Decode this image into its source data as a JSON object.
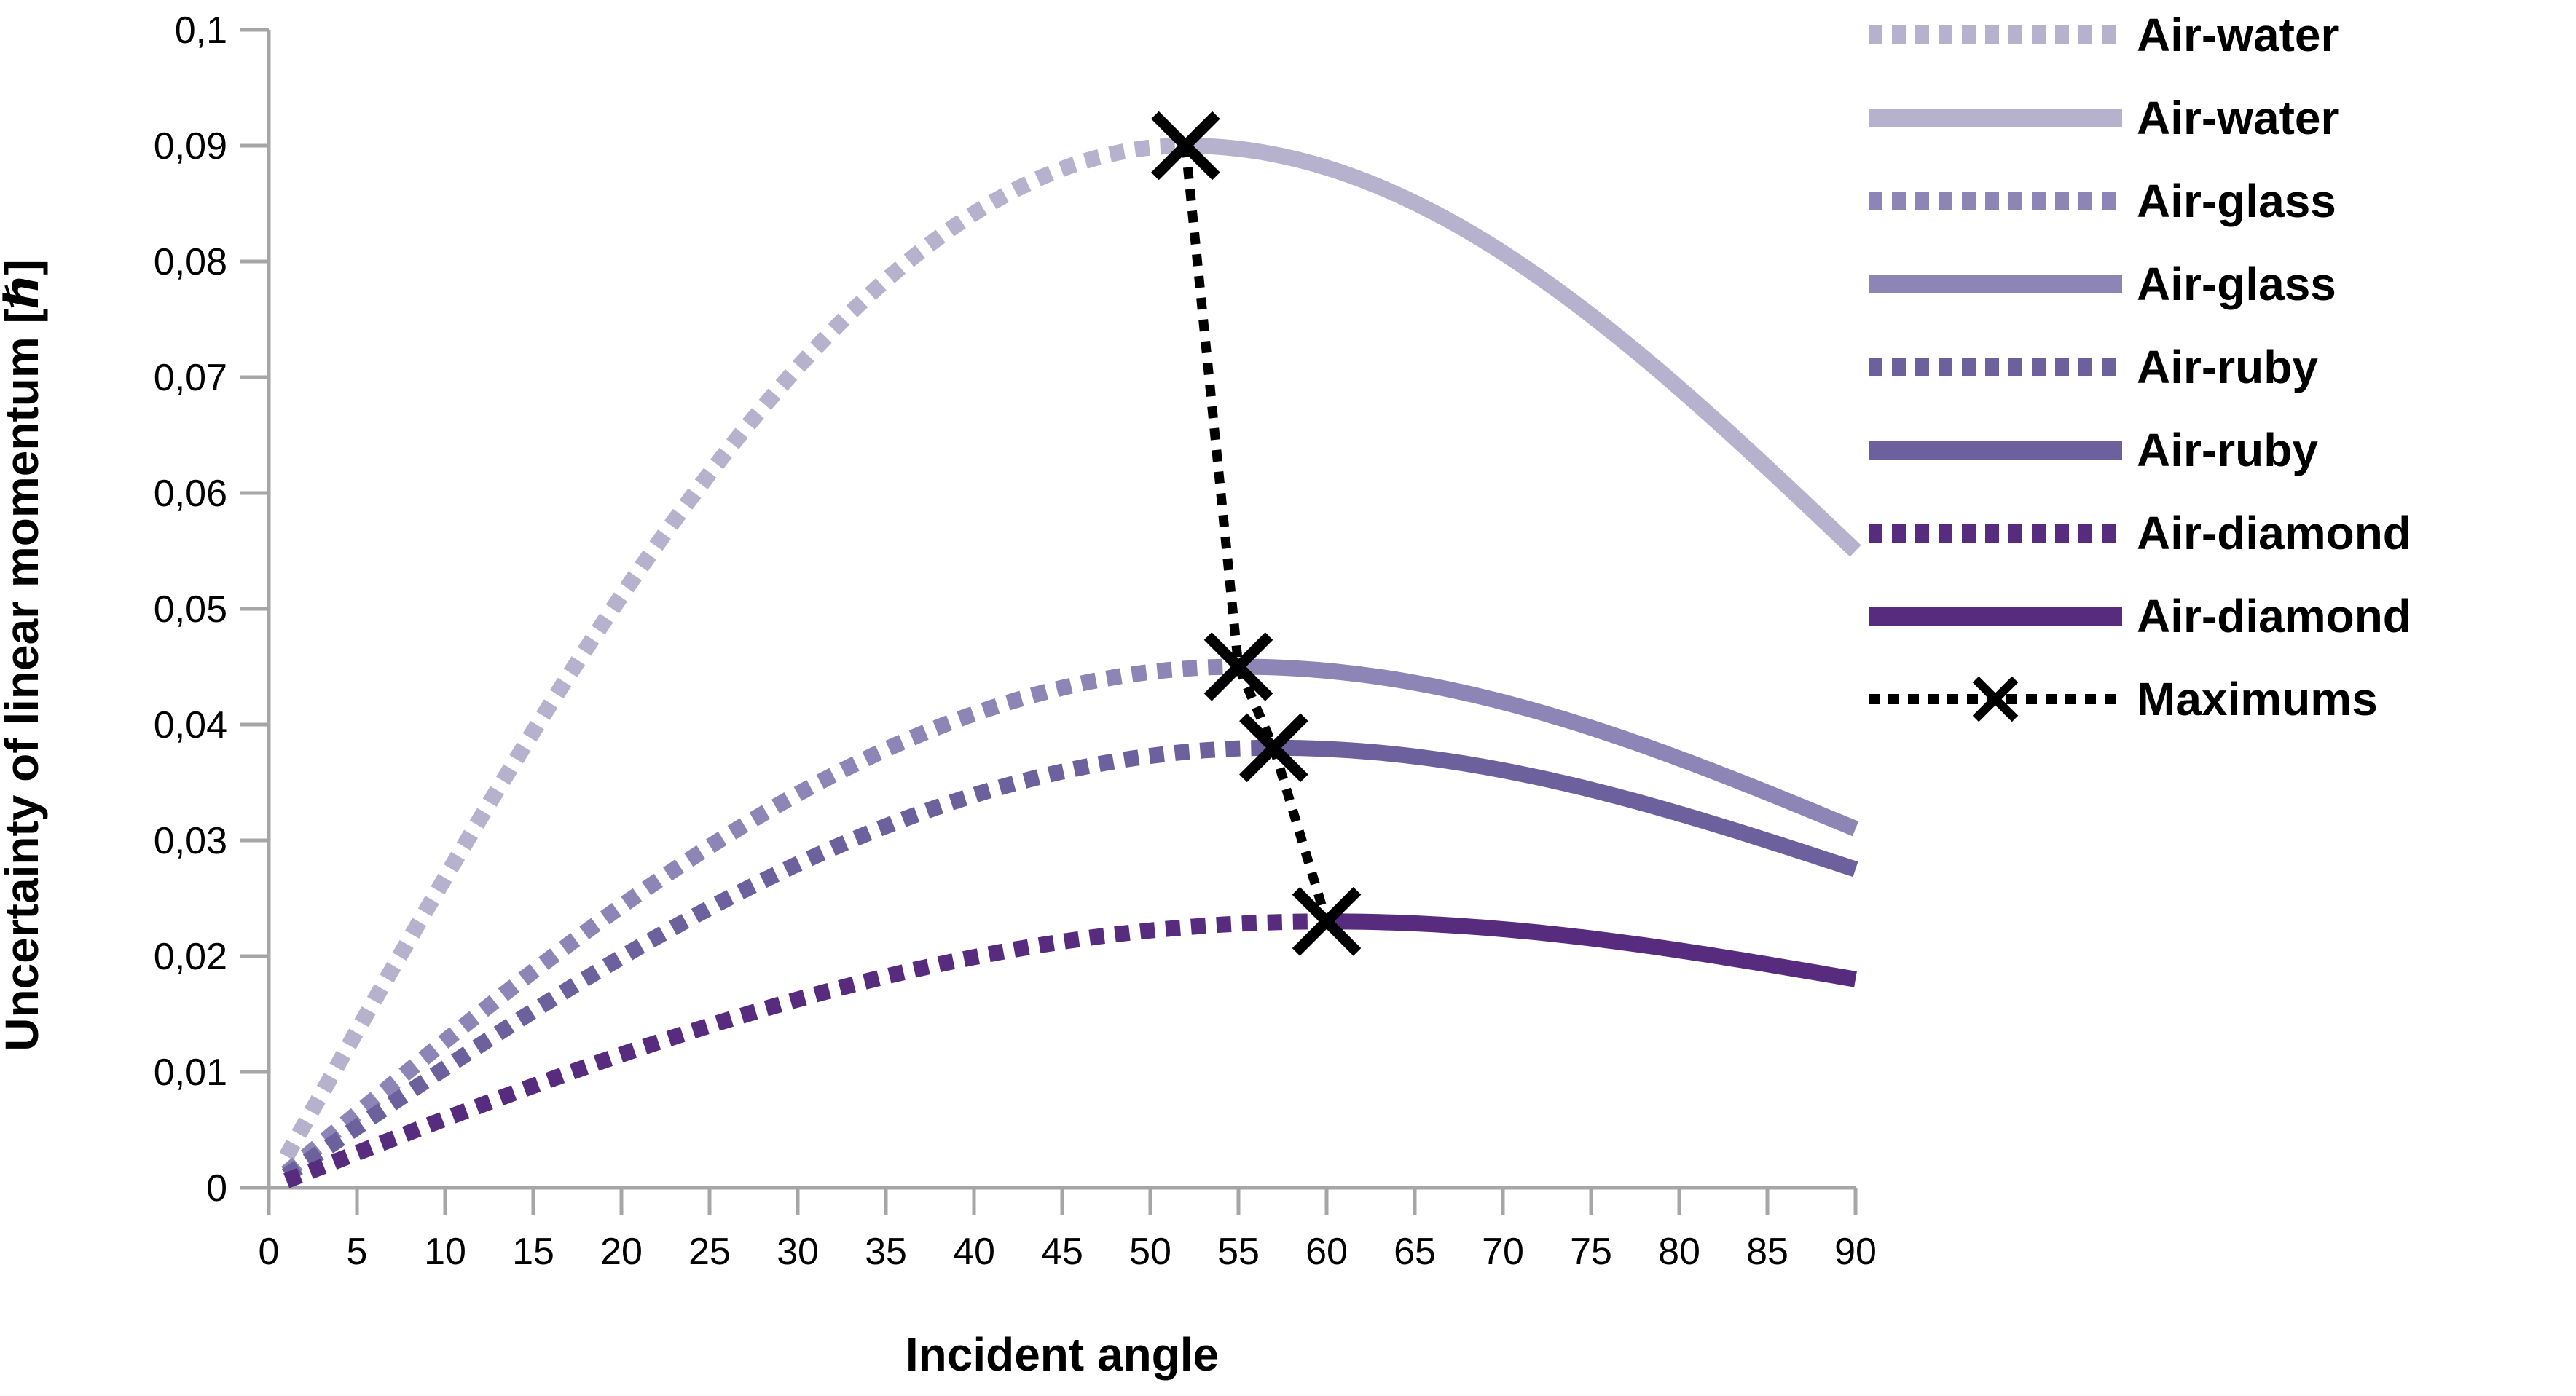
{
  "chart_data": {
    "type": "line",
    "title": "",
    "xlabel": "Incident angle",
    "ylabel": "Uncertainty of linear momentum  [ℏ]",
    "xlim": [
      0,
      90
    ],
    "ylim": [
      0,
      0.1
    ],
    "grid": false,
    "legend_position": "right",
    "x_ticks": {
      "values": [
        0,
        5,
        10,
        15,
        20,
        25,
        30,
        35,
        40,
        45,
        50,
        55,
        60,
        65,
        70,
        75,
        80,
        85,
        90
      ],
      "labels": [
        "0",
        "5",
        "10",
        "15",
        "20",
        "25",
        "30",
        "35",
        "40",
        "45",
        "50",
        "55",
        "60",
        "65",
        "70",
        "75",
        "80",
        "85",
        "90"
      ]
    },
    "y_ticks": {
      "values": [
        0,
        0.01,
        0.02,
        0.03,
        0.04,
        0.05,
        0.06,
        0.07,
        0.08,
        0.09,
        0.1
      ],
      "labels": [
        "0",
        "0,01",
        "0,02",
        "0,03",
        "0,04",
        "0,05",
        "0,06",
        "0,07",
        "0,08",
        "0,09",
        "0,1"
      ]
    },
    "x": [
      0,
      5,
      10,
      15,
      20,
      25,
      30,
      35,
      40,
      45,
      50,
      55,
      60,
      65,
      70,
      75,
      80,
      85,
      90
    ],
    "series": [
      {
        "name": "Air-water",
        "color": "#b6b1cd",
        "line_style": "dotted-before-max-solid-after",
        "max": {
          "angle": 52,
          "value": 0.09
        },
        "value_at_90": 0.055,
        "values": [
          0,
          0.0135,
          0.0268,
          0.0394,
          0.0511,
          0.0617,
          0.0708,
          0.0784,
          0.0842,
          0.088,
          0.0898,
          0.0897,
          0.0881,
          0.0851,
          0.0808,
          0.0753,
          0.0691,
          0.0622,
          0.055
        ]
      },
      {
        "name": "Air-glass",
        "color": "#8d85b5",
        "line_style": "dotted-before-max-solid-after",
        "max": {
          "angle": 55,
          "value": 0.045
        },
        "value_at_90": 0.031,
        "values": [
          0,
          0.0064,
          0.0127,
          0.0187,
          0.0243,
          0.0295,
          0.034,
          0.0379,
          0.0409,
          0.0432,
          0.0445,
          0.045,
          0.0446,
          0.0436,
          0.0419,
          0.0397,
          0.0371,
          0.0341,
          0.031
        ]
      },
      {
        "name": "Air-ruby",
        "color": "#6c619d",
        "line_style": "dotted-before-max-solid-after",
        "max": {
          "angle": 57,
          "value": 0.038
        },
        "value_at_90": 0.0275,
        "values": [
          0,
          0.0052,
          0.0103,
          0.0153,
          0.0199,
          0.0242,
          0.028,
          0.0312,
          0.0339,
          0.0359,
          0.0373,
          0.0379,
          0.0379,
          0.0372,
          0.0361,
          0.0344,
          0.0323,
          0.03,
          0.0275
        ]
      },
      {
        "name": "Air-diamond",
        "color": "#572b7e",
        "line_style": "dotted-before-max-solid-after",
        "max": {
          "angle": 60,
          "value": 0.023
        },
        "value_at_90": 0.018,
        "values": [
          0,
          0.003,
          0.006,
          0.0088,
          0.0115,
          0.014,
          0.0163,
          0.0182,
          0.0199,
          0.0212,
          0.0222,
          0.0228,
          0.023,
          0.0228,
          0.0223,
          0.0215,
          0.0205,
          0.0193,
          0.018
        ]
      }
    ],
    "maximums": {
      "name": "Maximums",
      "color": "#000000",
      "marker": "x",
      "line_style": "dotted",
      "points": [
        {
          "angle": 52,
          "value": 0.09
        },
        {
          "angle": 55,
          "value": 0.045
        },
        {
          "angle": 57,
          "value": 0.038
        },
        {
          "angle": 60,
          "value": 0.023
        }
      ]
    },
    "legend_entries": [
      {
        "label": "Air-water",
        "style": "dotted",
        "color": "#b6b1cd"
      },
      {
        "label": "Air-water",
        "style": "solid",
        "color": "#b6b1cd"
      },
      {
        "label": "Air-glass",
        "style": "dotted",
        "color": "#8d85b5"
      },
      {
        "label": "Air-glass",
        "style": "solid",
        "color": "#8d85b5"
      },
      {
        "label": "Air-ruby",
        "style": "dotted",
        "color": "#6c619d"
      },
      {
        "label": "Air-ruby",
        "style": "solid",
        "color": "#6c619d"
      },
      {
        "label": "Air-diamond",
        "style": "dotted",
        "color": "#572b7e"
      },
      {
        "label": "Air-diamond",
        "style": "solid",
        "color": "#572b7e"
      },
      {
        "label": "Maximums",
        "style": "maximums",
        "color": "#000000"
      }
    ],
    "colors": {
      "axis": "#a6a6a6",
      "text": "#000000",
      "background": "#ffffff"
    }
  }
}
